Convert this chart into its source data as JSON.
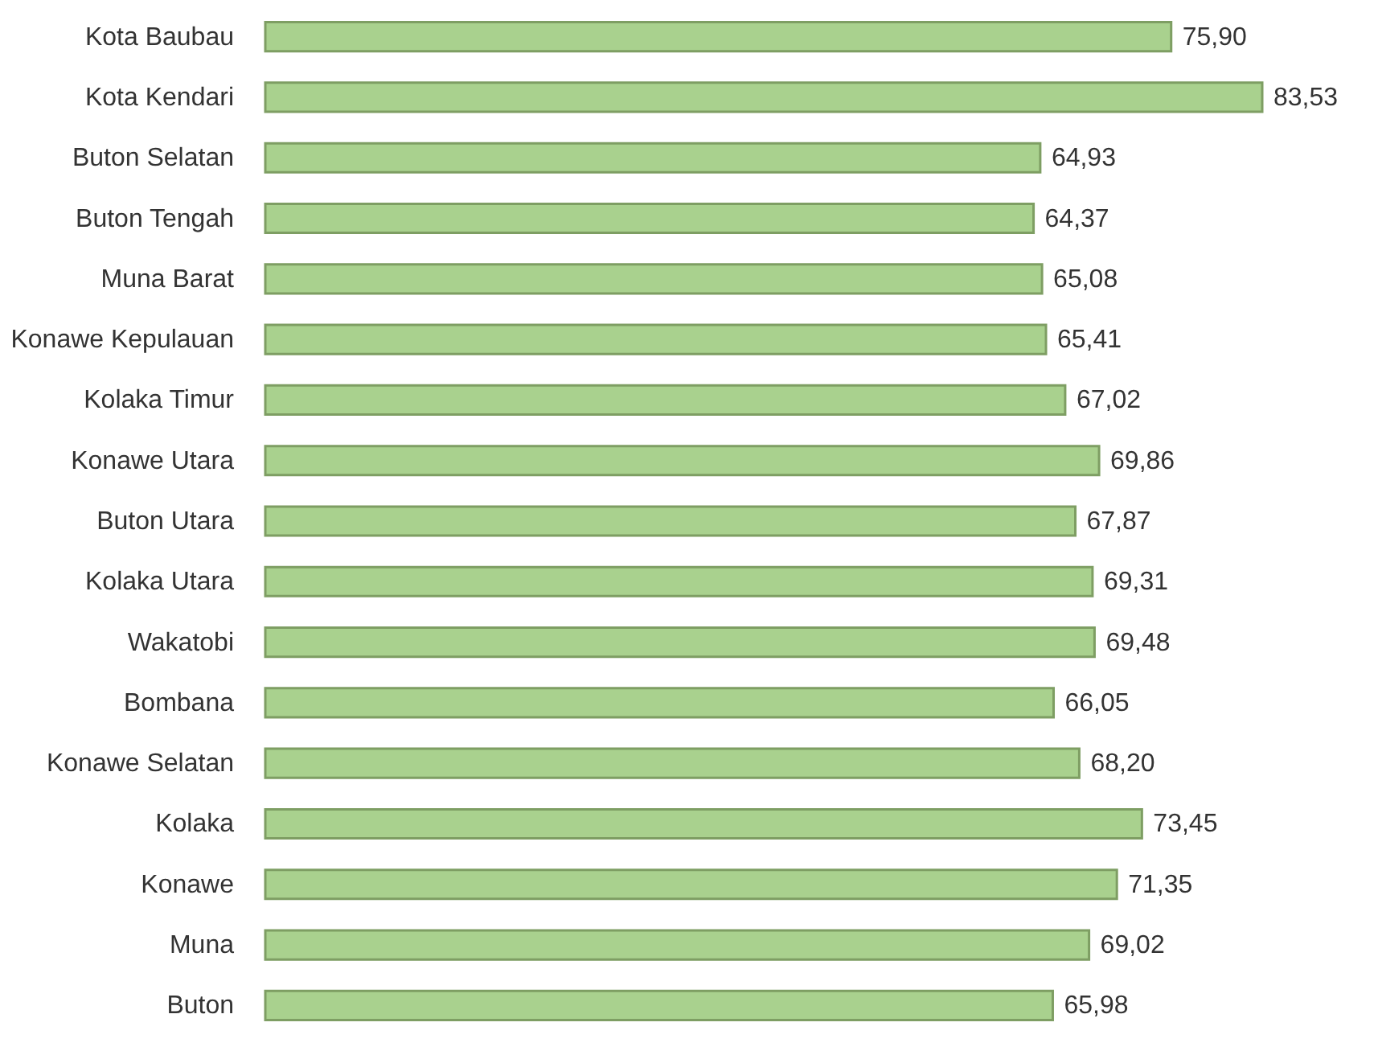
{
  "chart_data": {
    "type": "bar",
    "orientation": "horizontal",
    "categories": [
      "Kota Baubau",
      "Kota Kendari",
      "Buton Selatan",
      "Buton Tengah",
      "Muna Barat",
      "Konawe Kepulauan",
      "Kolaka Timur",
      "Konawe Utara",
      "Buton Utara",
      "Kolaka Utara",
      "Wakatobi",
      "Bombana",
      "Konawe Selatan",
      "Kolaka",
      "Konawe",
      "Muna",
      "Buton"
    ],
    "values": [
      75.9,
      83.53,
      64.93,
      64.37,
      65.08,
      65.41,
      67.02,
      69.86,
      67.87,
      69.31,
      69.48,
      66.05,
      68.2,
      73.45,
      71.35,
      69.02,
      65.98
    ],
    "value_labels": [
      "75,90",
      "83,53",
      "64,93",
      "64,37",
      "65,08",
      "65,41",
      "67,02",
      "69,86",
      "67,87",
      "69,31",
      "69,48",
      "66,05",
      "68,20",
      "73,45",
      "71,35",
      "69,02",
      "65,98"
    ],
    "color": "#a9d18e"
  }
}
